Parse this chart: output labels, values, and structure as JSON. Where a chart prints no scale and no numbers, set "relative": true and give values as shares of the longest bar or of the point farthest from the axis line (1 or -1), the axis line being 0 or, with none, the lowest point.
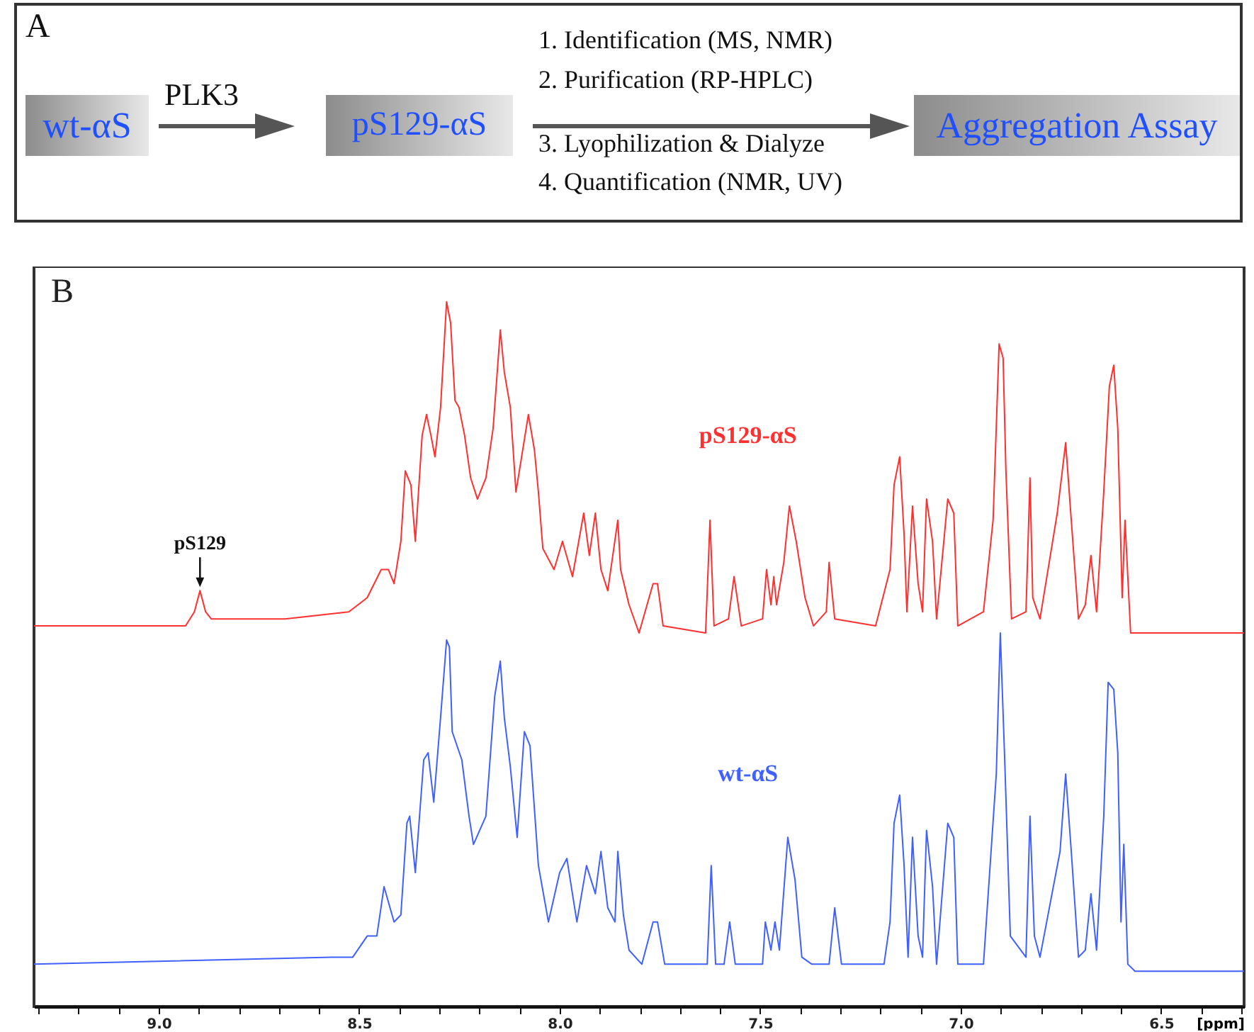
{
  "chart_data": [
    {
      "type": "other",
      "annotations": [
        "A",
        "wt-αS",
        "PLK3",
        "pS129-αS",
        "1. Identification (MS, NMR)",
        "2. Purification (RP-HPLC)",
        "3. Lyophilization & Dialyze",
        "4. Quantification (NMR, UV)",
        "Aggregation Assay"
      ]
    },
    {
      "type": "line",
      "xlabel": "[ppm]",
      "relative": true,
      "xlim": [
        9.311,
        6.293
      ],
      "xticks": [
        {
          "value": 9.3,
          "label": null
        },
        {
          "value": 9.2,
          "label": null
        },
        {
          "value": 9.1,
          "label": null
        },
        {
          "value": 9,
          "label": "9.0"
        },
        {
          "value": 8.9,
          "label": null
        },
        {
          "value": 8.8,
          "label": null
        },
        {
          "value": 8.7,
          "label": null
        },
        {
          "value": 8.6,
          "label": null
        },
        {
          "value": 8.5,
          "label": "8.5"
        },
        {
          "value": 8.4,
          "label": null
        },
        {
          "value": 8.3,
          "label": null
        },
        {
          "value": 8.2,
          "label": null
        },
        {
          "value": 8.1,
          "label": null
        },
        {
          "value": 8,
          "label": "8.0"
        },
        {
          "value": 7.9,
          "label": null
        },
        {
          "value": 7.8,
          "label": null
        },
        {
          "value": 7.7,
          "label": null
        },
        {
          "value": 7.6,
          "label": null
        },
        {
          "value": 7.5,
          "label": "7.5"
        },
        {
          "value": 7.4,
          "label": null
        },
        {
          "value": 7.3,
          "label": null
        },
        {
          "value": 7.2,
          "label": null
        },
        {
          "value": 7.1,
          "label": null
        },
        {
          "value": 7,
          "label": "7.0"
        },
        {
          "value": 6.9,
          "label": null
        },
        {
          "value": 6.8,
          "label": null
        },
        {
          "value": 6.7,
          "label": null
        },
        {
          "value": 6.6,
          "label": null
        },
        {
          "value": 6.5,
          "label": "6.5"
        },
        {
          "value": 6.4,
          "label": null
        },
        {
          "value": 6.3,
          "label": null
        }
      ],
      "annotations": [
        "B",
        {
          "text": "pS129",
          "x": 8.897,
          "y": 0.59
        }
      ],
      "series": [
        {
          "name": "pS129-αS",
          "color": "#ff3030",
          "x": [
            9.311,
            8.933,
            8.911,
            8.897,
            8.883,
            8.869,
            8.685,
            8.526,
            8.48,
            8.445,
            8.427,
            8.413,
            8.396,
            8.385,
            8.371,
            8.36,
            8.343,
            8.332,
            8.321,
            8.311,
            8.297,
            8.282,
            8.272,
            8.261,
            8.251,
            8.237,
            8.222,
            8.205,
            8.184,
            8.166,
            8.148,
            8.138,
            8.123,
            8.109,
            8.092,
            8.078,
            8.063,
            8.053,
            8.042,
            8.014,
            7.993,
            7.968,
            7.94,
            7.926,
            7.911,
            7.897,
            7.88,
            7.855,
            7.848,
            7.827,
            7.802,
            7.767,
            7.756,
            7.742,
            7.636,
            7.625,
            7.615,
            7.579,
            7.565,
            7.547,
            7.494,
            7.484,
            7.473,
            7.466,
            7.459,
            7.441,
            7.427,
            7.41,
            7.388,
            7.367,
            7.335,
            7.328,
            7.314,
            7.212,
            7.176,
            7.166,
            7.152,
            7.141,
            7.134,
            7.12,
            7.106,
            7.095,
            7.085,
            7.07,
            7.06,
            7.032,
            7.017,
            7.007,
            6.943,
            6.919,
            6.904,
            6.894,
            6.887,
            6.873,
            6.837,
            6.827,
            6.82,
            6.802,
            6.759,
            6.738,
            6.724,
            6.706,
            6.689,
            6.675,
            6.661,
            6.643,
            6.629,
            6.618,
            6.608,
            6.597,
            6.59,
            6.576,
            6.565,
            6.293
          ],
          "values": [
            0.54,
            0.54,
            0.56,
            0.59,
            0.56,
            0.55,
            0.55,
            0.56,
            0.58,
            0.62,
            0.62,
            0.6,
            0.66,
            0.76,
            0.74,
            0.66,
            0.81,
            0.84,
            0.81,
            0.78,
            0.85,
            1,
            0.97,
            0.86,
            0.85,
            0.81,
            0.75,
            0.72,
            0.75,
            0.82,
            0.96,
            0.9,
            0.85,
            0.73,
            0.79,
            0.84,
            0.79,
            0.73,
            0.65,
            0.62,
            0.66,
            0.61,
            0.7,
            0.64,
            0.7,
            0.62,
            0.59,
            0.69,
            0.62,
            0.57,
            0.53,
            0.6,
            0.6,
            0.54,
            0.53,
            0.69,
            0.54,
            0.55,
            0.61,
            0.54,
            0.55,
            0.62,
            0.57,
            0.61,
            0.57,
            0.63,
            0.71,
            0.66,
            0.58,
            0.54,
            0.56,
            0.63,
            0.55,
            0.54,
            0.62,
            0.74,
            0.78,
            0.67,
            0.56,
            0.71,
            0.6,
            0.56,
            0.72,
            0.66,
            0.55,
            0.72,
            0.7,
            0.54,
            0.56,
            0.69,
            0.94,
            0.92,
            0.76,
            0.55,
            0.56,
            0.75,
            0.58,
            0.55,
            0.7,
            0.8,
            0.69,
            0.55,
            0.57,
            0.64,
            0.56,
            0.73,
            0.88,
            0.91,
            0.82,
            0.58,
            0.69,
            0.53,
            0.53,
            0.53
          ]
        },
        {
          "name": "wt-αS",
          "color": "#4060ff",
          "x": [
            9.311,
            8.569,
            8.516,
            8.48,
            8.456,
            8.438,
            8.413,
            8.396,
            8.381,
            8.374,
            8.36,
            8.339,
            8.328,
            8.314,
            8.297,
            8.282,
            8.275,
            8.268,
            8.244,
            8.226,
            8.215,
            8.184,
            8.162,
            8.148,
            8.138,
            8.123,
            8.106,
            8.088,
            8.074,
            8.053,
            8.028,
            8,
            7.982,
            7.957,
            7.933,
            7.911,
            7.897,
            7.88,
            7.862,
            7.855,
            7.841,
            7.827,
            7.795,
            7.767,
            7.756,
            7.738,
            7.632,
            7.622,
            7.611,
            7.59,
            7.576,
            7.562,
            7.494,
            7.487,
            7.473,
            7.463,
            7.452,
            7.431,
            7.413,
            7.396,
            7.371,
            7.328,
            7.314,
            7.297,
            7.191,
            7.176,
            7.166,
            7.152,
            7.141,
            7.131,
            7.12,
            7.106,
            7.095,
            7.085,
            7.07,
            7.06,
            7.032,
            7.017,
            7.007,
            6.943,
            6.911,
            6.901,
            6.89,
            6.876,
            6.837,
            6.827,
            6.816,
            6.802,
            6.752,
            6.738,
            6.724,
            6.706,
            6.689,
            6.675,
            6.661,
            6.643,
            6.632,
            6.618,
            6.608,
            6.6,
            6.593,
            6.583,
            6.565,
            6.293
          ],
          "values": [
            0.06,
            0.07,
            0.07,
            0.1,
            0.1,
            0.17,
            0.12,
            0.13,
            0.26,
            0.27,
            0.19,
            0.35,
            0.36,
            0.29,
            0.41,
            0.52,
            0.51,
            0.39,
            0.35,
            0.27,
            0.23,
            0.27,
            0.44,
            0.49,
            0.41,
            0.34,
            0.24,
            0.39,
            0.37,
            0.2,
            0.12,
            0.19,
            0.21,
            0.12,
            0.2,
            0.16,
            0.22,
            0.14,
            0.12,
            0.22,
            0.13,
            0.08,
            0.06,
            0.12,
            0.12,
            0.06,
            0.06,
            0.2,
            0.06,
            0.06,
            0.12,
            0.06,
            0.06,
            0.12,
            0.08,
            0.12,
            0.08,
            0.24,
            0.18,
            0.07,
            0.06,
            0.06,
            0.14,
            0.06,
            0.06,
            0.12,
            0.26,
            0.3,
            0.2,
            0.07,
            0.24,
            0.1,
            0.07,
            0.25,
            0.17,
            0.06,
            0.26,
            0.24,
            0.06,
            0.06,
            0.33,
            0.53,
            0.35,
            0.1,
            0.07,
            0.27,
            0.1,
            0.07,
            0.22,
            0.33,
            0.22,
            0.07,
            0.08,
            0.16,
            0.08,
            0.27,
            0.46,
            0.45,
            0.36,
            0.12,
            0.23,
            0.06,
            0.05,
            0.05
          ]
        }
      ]
    }
  ]
}
